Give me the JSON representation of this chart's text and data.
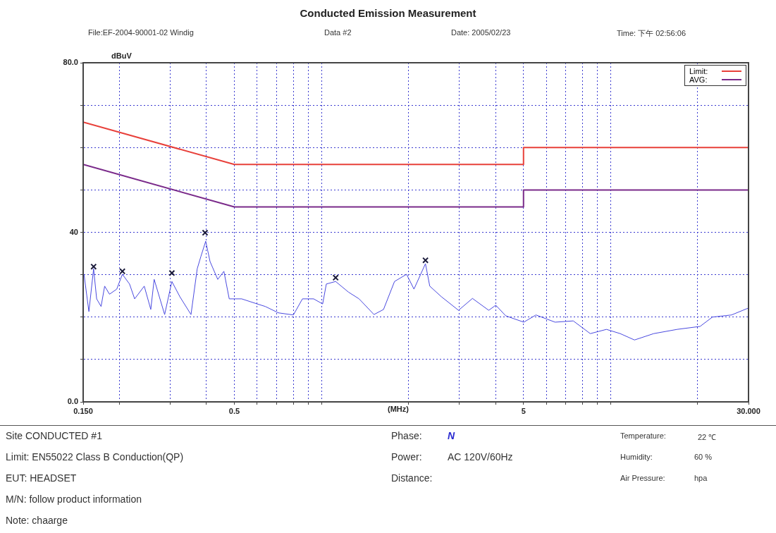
{
  "chart_data": {
    "type": "line",
    "title": "Conducted Emission Measurement",
    "xlabel": "(MHz)",
    "ylabel": "dBuV",
    "log": "x",
    "grid": true,
    "legend": "top right",
    "marker": "none",
    "xlim": [
      0.15,
      30
    ],
    "ylim": [
      0,
      80
    ],
    "xticks": [
      {
        "value": 0.15,
        "label": "0.150"
      },
      {
        "value": 0.2,
        "label": null
      },
      {
        "value": 0.3,
        "label": null
      },
      {
        "value": 0.4,
        "label": null
      },
      0.5,
      {
        "value": 0.6,
        "label": null
      },
      {
        "value": 0.7,
        "label": null
      },
      {
        "value": 0.8,
        "label": null
      },
      {
        "value": 0.9,
        "label": null
      },
      {
        "value": 1,
        "label": null
      },
      {
        "value": 2,
        "label": null
      },
      {
        "value": 3,
        "label": null
      },
      {
        "value": 4,
        "label": null
      },
      5,
      {
        "value": 6,
        "label": null
      },
      {
        "value": 7,
        "label": null
      },
      {
        "value": 8,
        "label": null
      },
      {
        "value": 9,
        "label": null
      },
      {
        "value": 10,
        "label": null
      },
      {
        "value": 20,
        "label": null
      },
      {
        "value": 30,
        "label": "30.000"
      }
    ],
    "yticks": [
      {
        "value": 0,
        "label": "0.0"
      },
      {
        "value": 10,
        "label": null
      },
      {
        "value": 20,
        "label": null
      },
      {
        "value": 30,
        "label": null
      },
      40,
      {
        "value": 50,
        "label": null
      },
      {
        "value": 60,
        "label": null
      },
      {
        "value": 70,
        "label": null
      },
      {
        "value": 80,
        "label": "80.0"
      }
    ],
    "series": [
      {
        "name": "Limit:",
        "color": "#e8403a",
        "x": [
          0.15,
          0.5,
          5,
          5,
          30
        ],
        "values": [
          66,
          56,
          56,
          60,
          60
        ]
      },
      {
        "name": "AVG:",
        "color": "#7a2a8a",
        "x": [
          0.15,
          0.5,
          5,
          5,
          30
        ],
        "values": [
          56,
          46,
          46,
          50,
          50
        ]
      },
      {
        "color": "#4a4ae0",
        "x": [
          0.151,
          0.157,
          0.163,
          0.167,
          0.173,
          0.178,
          0.185,
          0.196,
          0.205,
          0.217,
          0.226,
          0.244,
          0.257,
          0.264,
          0.287,
          0.304,
          0.324,
          0.354,
          0.372,
          0.383,
          0.398,
          0.412,
          0.438,
          0.46,
          0.48,
          0.53,
          0.6,
          0.64,
          0.71,
          0.8,
          0.86,
          0.94,
          1.01,
          1.04,
          1.12,
          1.24,
          1.35,
          1.52,
          1.64,
          1.79,
          1.97,
          2.09,
          2.29,
          2.37,
          2.6,
          2.98,
          3.33,
          3.79,
          4.01,
          4.34,
          5.01,
          5.52,
          6.43,
          7.43,
          8.51,
          9.68,
          10.8,
          12.1,
          14.1,
          17,
          20.4,
          22.5,
          26.2,
          29.9
        ],
        "values": [
          30.1,
          21.3,
          31.4,
          24.3,
          22.5,
          27.3,
          25.4,
          26.6,
          30.1,
          27.8,
          24.3,
          27.3,
          21.8,
          28.9,
          20.6,
          28.4,
          24.8,
          20.6,
          31.4,
          34.3,
          37.9,
          33.1,
          28.9,
          30.8,
          24.3,
          24.3,
          23.1,
          22.5,
          21,
          20.5,
          24.3,
          24.3,
          23.1,
          27.8,
          28.4,
          25.9,
          24.3,
          20.6,
          21.8,
          28.4,
          30.1,
          26.6,
          32.6,
          27.3,
          24.8,
          21.6,
          24.4,
          21.6,
          22.8,
          20.3,
          18.8,
          20.5,
          18.8,
          19.1,
          16.1,
          17.1,
          16.1,
          14.6,
          16.1,
          17.1,
          17.8,
          20,
          20.5,
          22.1
        ]
      },
      {
        "type": "scatter",
        "marker": "cross",
        "color": "#1a1a3a",
        "x": [
          0.163,
          0.205,
          0.304,
          0.396,
          1.12,
          2.29
        ],
        "values": [
          31.9,
          30.8,
          30.4,
          39.9,
          29.3,
          33.4
        ]
      }
    ],
    "annotations": [
      "File:EF-2004-90001-02 Windig",
      "Data #2",
      "Date: 2005/02/23",
      "Time: 下午 02:56:06",
      "Site CONDUCTED #1",
      "Limit: EN55022 Class B Conduction(QP)",
      "EUT: HEADSET",
      "M/N: follow product information",
      "Note: chaarge",
      "Phase:",
      "N",
      "Power:",
      "AC 120V/60Hz",
      "Distance:",
      "Temperature:",
      "22 ℃",
      "Humidity:",
      "60 %",
      "Air Pressure:",
      "hpa"
    ]
  }
}
